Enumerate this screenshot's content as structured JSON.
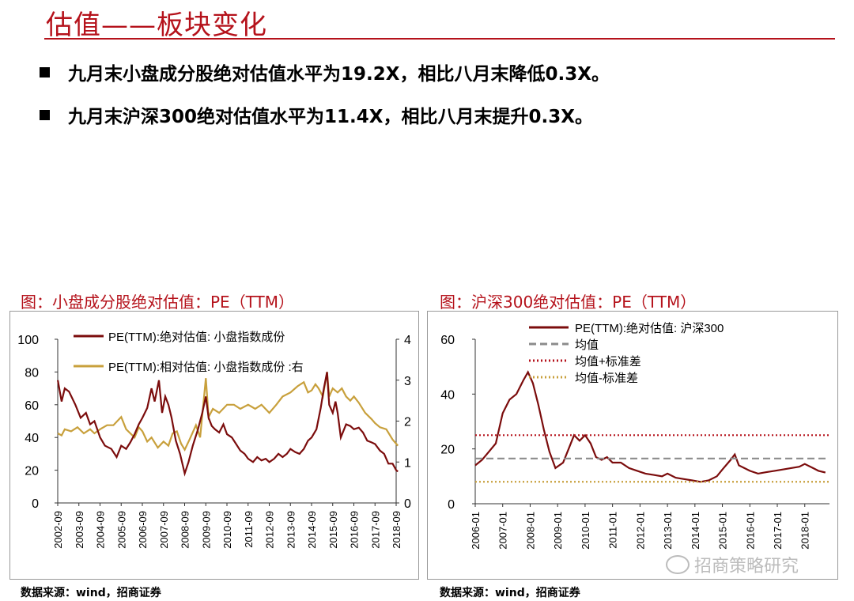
{
  "header": {
    "title": "估值——板块变化"
  },
  "bullets": [
    "九月末小盘成分股绝对估值水平为19.2X，相比八月末降低0.3X。",
    "九月末沪深300绝对估值水平为11.4X，相比八月末提升0.3X。"
  ],
  "watermark": "招商策略研究",
  "chart_data": [
    {
      "type": "line",
      "title": "图：小盘成分股绝对估值：PE（TTM）",
      "source": "数据来源：wind，招商证券",
      "x_ticks": [
        "2002-09",
        "2003-09",
        "2004-09",
        "2005-09",
        "2006-09",
        "2007-09",
        "2008-09",
        "2009-09",
        "2010-09",
        "2011-09",
        "2012-09",
        "2013-09",
        "2014-09",
        "2015-09",
        "2016-09",
        "2017-09",
        "2018-09"
      ],
      "y_left": {
        "lim": [
          0,
          100
        ],
        "ticks": [
          "0",
          "20",
          "40",
          "60",
          "80",
          "100"
        ]
      },
      "y_right": {
        "lim": [
          0,
          4
        ],
        "ticks": [
          "0",
          "1",
          "2",
          "3",
          "4"
        ]
      },
      "series": [
        {
          "name": "PE(TTM):绝对估值: 小盘指数成份",
          "color": "#7b0c0c",
          "axis": "left",
          "points": [
            [
              2002.67,
              75
            ],
            [
              2002.85,
              62
            ],
            [
              2003.0,
              70
            ],
            [
              2003.2,
              68
            ],
            [
              2003.5,
              60
            ],
            [
              2003.75,
              52
            ],
            [
              2004.0,
              55
            ],
            [
              2004.2,
              48
            ],
            [
              2004.4,
              50
            ],
            [
              2004.67,
              40
            ],
            [
              2004.9,
              35
            ],
            [
              2005.2,
              33
            ],
            [
              2005.45,
              28
            ],
            [
              2005.67,
              35
            ],
            [
              2005.9,
              33
            ],
            [
              2006.1,
              37
            ],
            [
              2006.3,
              42
            ],
            [
              2006.5,
              48
            ],
            [
              2006.67,
              52
            ],
            [
              2006.9,
              58
            ],
            [
              2007.1,
              70
            ],
            [
              2007.25,
              62
            ],
            [
              2007.45,
              75
            ],
            [
              2007.6,
              55
            ],
            [
              2007.75,
              65
            ],
            [
              2007.9,
              60
            ],
            [
              2008.05,
              52
            ],
            [
              2008.25,
              38
            ],
            [
              2008.45,
              30
            ],
            [
              2008.67,
              18
            ],
            [
              2008.85,
              25
            ],
            [
              2009.05,
              35
            ],
            [
              2009.3,
              45
            ],
            [
              2009.5,
              55
            ],
            [
              2009.67,
              65
            ],
            [
              2009.8,
              52
            ],
            [
              2009.95,
              47
            ],
            [
              2010.1,
              45
            ],
            [
              2010.3,
              43
            ],
            [
              2010.5,
              48
            ],
            [
              2010.67,
              42
            ],
            [
              2010.9,
              40
            ],
            [
              2011.1,
              36
            ],
            [
              2011.3,
              32
            ],
            [
              2011.5,
              30
            ],
            [
              2011.67,
              27
            ],
            [
              2011.9,
              25
            ],
            [
              2012.1,
              28
            ],
            [
              2012.3,
              26
            ],
            [
              2012.5,
              27
            ],
            [
              2012.67,
              25
            ],
            [
              2012.9,
              27
            ],
            [
              2013.1,
              30
            ],
            [
              2013.3,
              28
            ],
            [
              2013.5,
              30
            ],
            [
              2013.67,
              33
            ],
            [
              2013.9,
              31
            ],
            [
              2014.1,
              30
            ],
            [
              2014.3,
              33
            ],
            [
              2014.5,
              38
            ],
            [
              2014.67,
              40
            ],
            [
              2014.9,
              45
            ],
            [
              2015.1,
              58
            ],
            [
              2015.25,
              70
            ],
            [
              2015.4,
              80
            ],
            [
              2015.5,
              60
            ],
            [
              2015.67,
              55
            ],
            [
              2015.8,
              62
            ],
            [
              2015.9,
              55
            ],
            [
              2016.05,
              40
            ],
            [
              2016.3,
              48
            ],
            [
              2016.5,
              47
            ],
            [
              2016.67,
              45
            ],
            [
              2016.9,
              46
            ],
            [
              2017.1,
              43
            ],
            [
              2017.3,
              38
            ],
            [
              2017.5,
              37
            ],
            [
              2017.67,
              36
            ],
            [
              2017.9,
              32
            ],
            [
              2018.1,
              30
            ],
            [
              2018.3,
              24
            ],
            [
              2018.5,
              24
            ],
            [
              2018.67,
              20
            ],
            [
              2018.75,
              19.2
            ]
          ]
        },
        {
          "name": "PE(TTM):相对估值: 小盘指数成份 :右",
          "color": "#c8a03c",
          "axis": "right",
          "points": [
            [
              2002.67,
              1.7
            ],
            [
              2002.85,
              1.65
            ],
            [
              2003.0,
              1.8
            ],
            [
              2003.3,
              1.75
            ],
            [
              2003.6,
              1.85
            ],
            [
              2003.9,
              1.7
            ],
            [
              2004.2,
              1.8
            ],
            [
              2004.4,
              1.7
            ],
            [
              2004.67,
              1.8
            ],
            [
              2005.0,
              1.9
            ],
            [
              2005.3,
              1.9
            ],
            [
              2005.67,
              2.1
            ],
            [
              2005.9,
              1.8
            ],
            [
              2006.1,
              1.7
            ],
            [
              2006.3,
              1.6
            ],
            [
              2006.5,
              1.85
            ],
            [
              2006.67,
              1.75
            ],
            [
              2006.9,
              1.5
            ],
            [
              2007.1,
              1.6
            ],
            [
              2007.4,
              1.35
            ],
            [
              2007.67,
              1.5
            ],
            [
              2007.9,
              1.4
            ],
            [
              2008.1,
              1.7
            ],
            [
              2008.3,
              1.75
            ],
            [
              2008.5,
              1.45
            ],
            [
              2008.67,
              1.3
            ],
            [
              2008.9,
              1.55
            ],
            [
              2009.2,
              1.9
            ],
            [
              2009.4,
              1.6
            ],
            [
              2009.55,
              2.4
            ],
            [
              2009.67,
              3.05
            ],
            [
              2009.8,
              2.1
            ],
            [
              2010.0,
              2.3
            ],
            [
              2010.3,
              2.2
            ],
            [
              2010.67,
              2.4
            ],
            [
              2011.0,
              2.4
            ],
            [
              2011.3,
              2.3
            ],
            [
              2011.67,
              2.4
            ],
            [
              2012.0,
              2.3
            ],
            [
              2012.3,
              2.4
            ],
            [
              2012.67,
              2.2
            ],
            [
              2013.0,
              2.4
            ],
            [
              2013.3,
              2.6
            ],
            [
              2013.67,
              2.7
            ],
            [
              2014.0,
              2.85
            ],
            [
              2014.3,
              2.95
            ],
            [
              2014.5,
              2.7
            ],
            [
              2014.67,
              2.75
            ],
            [
              2014.85,
              2.9
            ],
            [
              2015.0,
              2.8
            ],
            [
              2015.2,
              2.6
            ],
            [
              2015.4,
              3.2
            ],
            [
              2015.5,
              2.6
            ],
            [
              2015.67,
              2.8
            ],
            [
              2015.9,
              2.7
            ],
            [
              2016.1,
              2.8
            ],
            [
              2016.3,
              2.6
            ],
            [
              2016.5,
              2.5
            ],
            [
              2016.67,
              2.6
            ],
            [
              2016.9,
              2.45
            ],
            [
              2017.2,
              2.2
            ],
            [
              2017.5,
              2.05
            ],
            [
              2017.67,
              1.95
            ],
            [
              2017.9,
              1.85
            ],
            [
              2018.2,
              1.8
            ],
            [
              2018.5,
              1.55
            ],
            [
              2018.75,
              1.4
            ]
          ]
        }
      ]
    },
    {
      "type": "line",
      "title": "图：沪深300绝对估值：PE（TTM）",
      "source": "数据来源：wind，招商证券",
      "x_ticks": [
        "2006-01",
        "2007-01",
        "2008-01",
        "2009-01",
        "2010-01",
        "2011-01",
        "2012-01",
        "2013-01",
        "2014-01",
        "2015-01",
        "2016-01",
        "2017-01",
        "2018-01"
      ],
      "y_left": {
        "lim": [
          0,
          60
        ],
        "ticks": [
          "0",
          "20",
          "40",
          "60"
        ]
      },
      "series": [
        {
          "name": "PE(TTM):绝对估值: 沪深300",
          "color": "#7b0c0c",
          "style": "solid",
          "points": [
            [
              2006.0,
              14
            ],
            [
              2006.25,
              16
            ],
            [
              2006.5,
              19
            ],
            [
              2006.75,
              22
            ],
            [
              2007.0,
              33
            ],
            [
              2007.25,
              38
            ],
            [
              2007.5,
              40
            ],
            [
              2007.75,
              45
            ],
            [
              2007.92,
              48
            ],
            [
              2008.1,
              44
            ],
            [
              2008.3,
              36
            ],
            [
              2008.5,
              27
            ],
            [
              2008.7,
              19
            ],
            [
              2008.92,
              13
            ],
            [
              2009.2,
              15
            ],
            [
              2009.4,
              20
            ],
            [
              2009.6,
              25
            ],
            [
              2009.8,
              23
            ],
            [
              2010.0,
              25
            ],
            [
              2010.2,
              22
            ],
            [
              2010.4,
              17
            ],
            [
              2010.6,
              16
            ],
            [
              2010.8,
              17
            ],
            [
              2011.0,
              15
            ],
            [
              2011.3,
              15
            ],
            [
              2011.6,
              13
            ],
            [
              2011.9,
              12
            ],
            [
              2012.2,
              11
            ],
            [
              2012.5,
              10.5
            ],
            [
              2012.8,
              10
            ],
            [
              2013.0,
              11
            ],
            [
              2013.3,
              9.5
            ],
            [
              2013.6,
              9
            ],
            [
              2013.9,
              8.5
            ],
            [
              2014.2,
              8
            ],
            [
              2014.5,
              8.5
            ],
            [
              2014.8,
              10
            ],
            [
              2015.0,
              12.5
            ],
            [
              2015.3,
              16
            ],
            [
              2015.45,
              18
            ],
            [
              2015.6,
              14
            ],
            [
              2015.8,
              13
            ],
            [
              2016.0,
              12
            ],
            [
              2016.3,
              11
            ],
            [
              2016.6,
              11.5
            ],
            [
              2016.9,
              12
            ],
            [
              2017.2,
              12.5
            ],
            [
              2017.5,
              13
            ],
            [
              2017.8,
              13.5
            ],
            [
              2018.0,
              14.5
            ],
            [
              2018.3,
              13
            ],
            [
              2018.5,
              12
            ],
            [
              2018.75,
              11.4
            ]
          ]
        },
        {
          "name": "均值",
          "color": "#8c8c8c",
          "style": "dashed",
          "value": 16.5
        },
        {
          "name": "均值+标准差",
          "color": "#b5121b",
          "style": "dotted",
          "value": 25
        },
        {
          "name": "均值-标准差",
          "color": "#c8a03c",
          "style": "dotted",
          "value": 8
        }
      ]
    }
  ]
}
